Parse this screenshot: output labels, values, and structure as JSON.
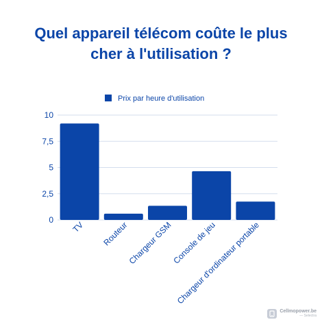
{
  "title": {
    "line1": "Quel appareil télécom coûte le plus",
    "line2": "cher à l'utilisation ?"
  },
  "brand": {
    "name": "Cellmopower.be",
    "sub": "— Selectra",
    "icon": "phone-logo-icon"
  },
  "colors": {
    "title": "#0b45a8",
    "bar": "#0b45a8",
    "grid": "#d3ddee",
    "axis_text": "#0b45a8"
  },
  "chart_data": {
    "type": "bar",
    "categories": [
      "TV",
      "Routeur",
      "Chargeur GSM",
      "Console de jeu",
      "Chargeur d'ordinateur portable"
    ],
    "series": [
      {
        "name": "Prix par heure d'utilisation",
        "values": [
          9.2,
          0.6,
          1.35,
          4.65,
          1.75
        ]
      }
    ],
    "ylim": [
      0,
      10
    ],
    "yticks": [
      0,
      2.5,
      5,
      7.5,
      10
    ],
    "ytick_labels": [
      "0",
      "2,5",
      "5",
      "7,5",
      "10"
    ],
    "grid": true,
    "legend": "top-center",
    "title": "",
    "xlabel": "",
    "ylabel": ""
  }
}
